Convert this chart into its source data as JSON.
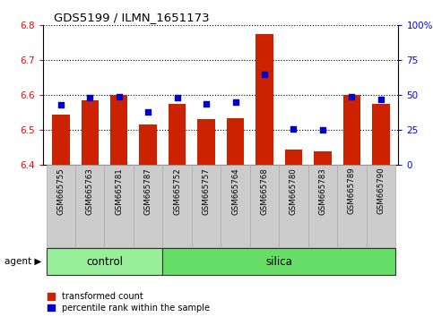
{
  "title": "GDS5199 / ILMN_1651173",
  "samples": [
    "GSM665755",
    "GSM665763",
    "GSM665781",
    "GSM665787",
    "GSM665752",
    "GSM665757",
    "GSM665764",
    "GSM665768",
    "GSM665780",
    "GSM665783",
    "GSM665789",
    "GSM665790"
  ],
  "control_count": 4,
  "silica_count": 8,
  "bar_values": [
    6.545,
    6.585,
    6.6,
    6.515,
    6.575,
    6.53,
    6.535,
    6.775,
    6.445,
    6.44,
    6.6,
    6.575
  ],
  "dot_values": [
    43,
    48,
    49,
    38,
    48,
    44,
    45,
    65,
    26,
    25,
    49,
    47
  ],
  "ylim_left": [
    6.4,
    6.8
  ],
  "ylim_right": [
    0,
    100
  ],
  "yticks_left": [
    6.4,
    6.5,
    6.6,
    6.7,
    6.8
  ],
  "yticks_right": [
    0,
    25,
    50,
    75,
    100
  ],
  "bar_color": "#cc2200",
  "dot_color": "#0000cc",
  "control_color": "#99ee99",
  "silica_color": "#66dd66",
  "agent_label": "agent",
  "control_label": "control",
  "silica_label": "silica",
  "legend1": "transformed count",
  "legend2": "percentile rank within the sample",
  "bar_bottom": 6.4,
  "bar_width": 0.6,
  "label_bg_color": "#cccccc",
  "label_border_color": "#aaaaaa"
}
